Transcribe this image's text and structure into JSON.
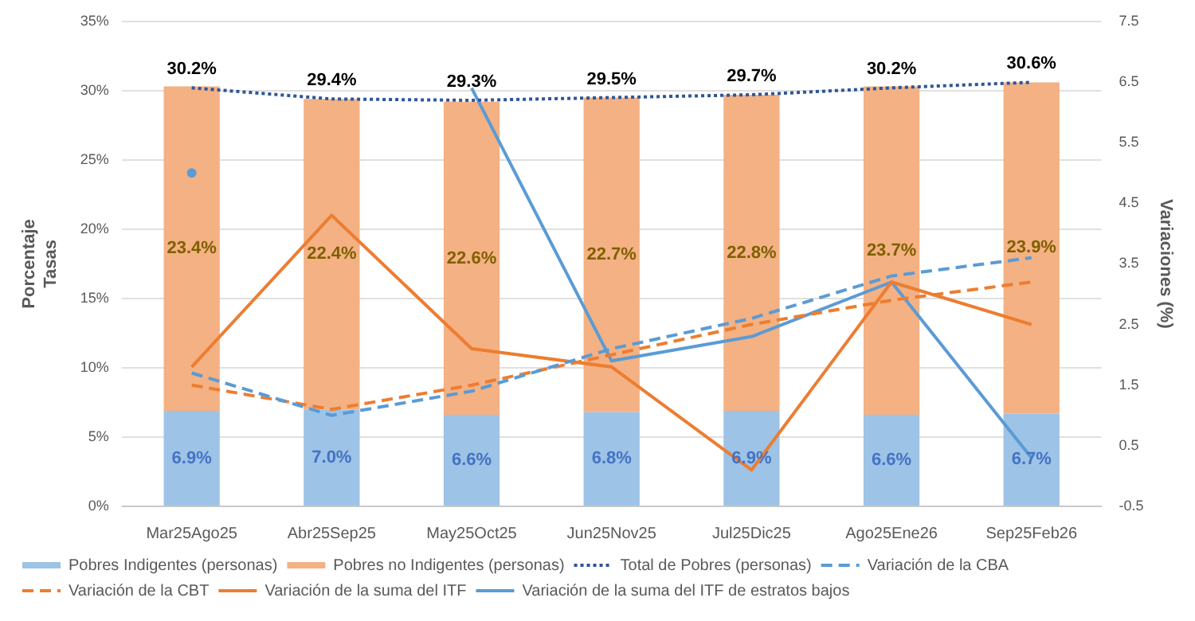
{
  "chart_data": {
    "type": "bar",
    "stacked": true,
    "ylabel": "Porcentaje\nTasas",
    "y2label": "Variaciones (%)",
    "categories": [
      "Mar25Ago25",
      "Abr25Sep25",
      "May25Oct25",
      "Jun25Nov25",
      "Jul25Dic25",
      "Ago25Ene26",
      "Sep25Feb26"
    ],
    "ylim": [
      0,
      35
    ],
    "yticks": [
      {
        "value": 0,
        "label": "0%"
      },
      {
        "value": 5,
        "label": "5%"
      },
      {
        "value": 10,
        "label": "10%"
      },
      {
        "value": 15,
        "label": "15%"
      },
      {
        "value": 20,
        "label": "20%"
      },
      {
        "value": 25,
        "label": "25%"
      },
      {
        "value": 30,
        "label": "30%"
      },
      {
        "value": 35,
        "label": "35%"
      }
    ],
    "y2lim": [
      -0.5,
      7.5
    ],
    "y2ticks": [
      -0.5,
      0.5,
      1.5,
      2.5,
      3.5,
      4.5,
      5.5,
      6.5,
      7.5
    ],
    "grid": "y",
    "legend": "bottom",
    "marker": "none",
    "series": [
      {
        "name": "Pobres Indigentes (personas)",
        "color": "#9dc3e6",
        "values": [
          6.9,
          7.0,
          6.6,
          6.8,
          6.9,
          6.6,
          6.7
        ],
        "value_labels": [
          "6.9%",
          "7.0%",
          "6.6%",
          "6.8%",
          "6.9%",
          "6.6%",
          "6.7%"
        ]
      },
      {
        "name": "Pobres no Indigentes (personas)",
        "color": "#f4b183",
        "values": [
          23.4,
          22.4,
          22.6,
          22.7,
          22.8,
          23.7,
          23.9
        ],
        "value_labels": [
          "23.4%",
          "22.4%",
          "22.6%",
          "22.7%",
          "22.8%",
          "23.7%",
          "23.9%"
        ]
      },
      {
        "name": "Total de Pobres (personas)",
        "type": "line",
        "line_style": "dotted",
        "color": "#2f5597",
        "values": [
          30.2,
          29.4,
          29.3,
          29.5,
          29.7,
          30.2,
          30.6
        ],
        "value_labels": [
          "30.2%",
          "29.4%",
          "29.3%",
          "29.5%",
          "29.7%",
          "30.2%",
          "30.6%"
        ]
      },
      {
        "name": "Variación de la CBA",
        "type": "line",
        "line_style": "dashed",
        "axis": "y2",
        "color": "#5b9bd5",
        "values": [
          1.7,
          1.0,
          1.4,
          2.1,
          2.6,
          3.3,
          3.6
        ]
      },
      {
        "name": "Variación de la CBT",
        "type": "line",
        "line_style": "dashed",
        "axis": "y2",
        "color": "#ed7d31",
        "values": [
          1.5,
          1.1,
          1.5,
          2.0,
          2.5,
          2.9,
          3.2
        ]
      },
      {
        "name": "Variación de la suma del ITF",
        "type": "line",
        "line_style": "solid",
        "axis": "y2",
        "color": "#ed7d31",
        "values": [
          1.8,
          4.3,
          2.1,
          1.8,
          0.1,
          3.2,
          2.5
        ]
      },
      {
        "name": "Variación de la suma del ITF de estratos bajos",
        "type": "line",
        "line_style": "solid",
        "axis": "y2",
        "color": "#5b9bd5",
        "values": [
          5.0,
          null,
          6.4,
          1.9,
          2.3,
          3.2,
          0.3
        ]
      }
    ]
  }
}
